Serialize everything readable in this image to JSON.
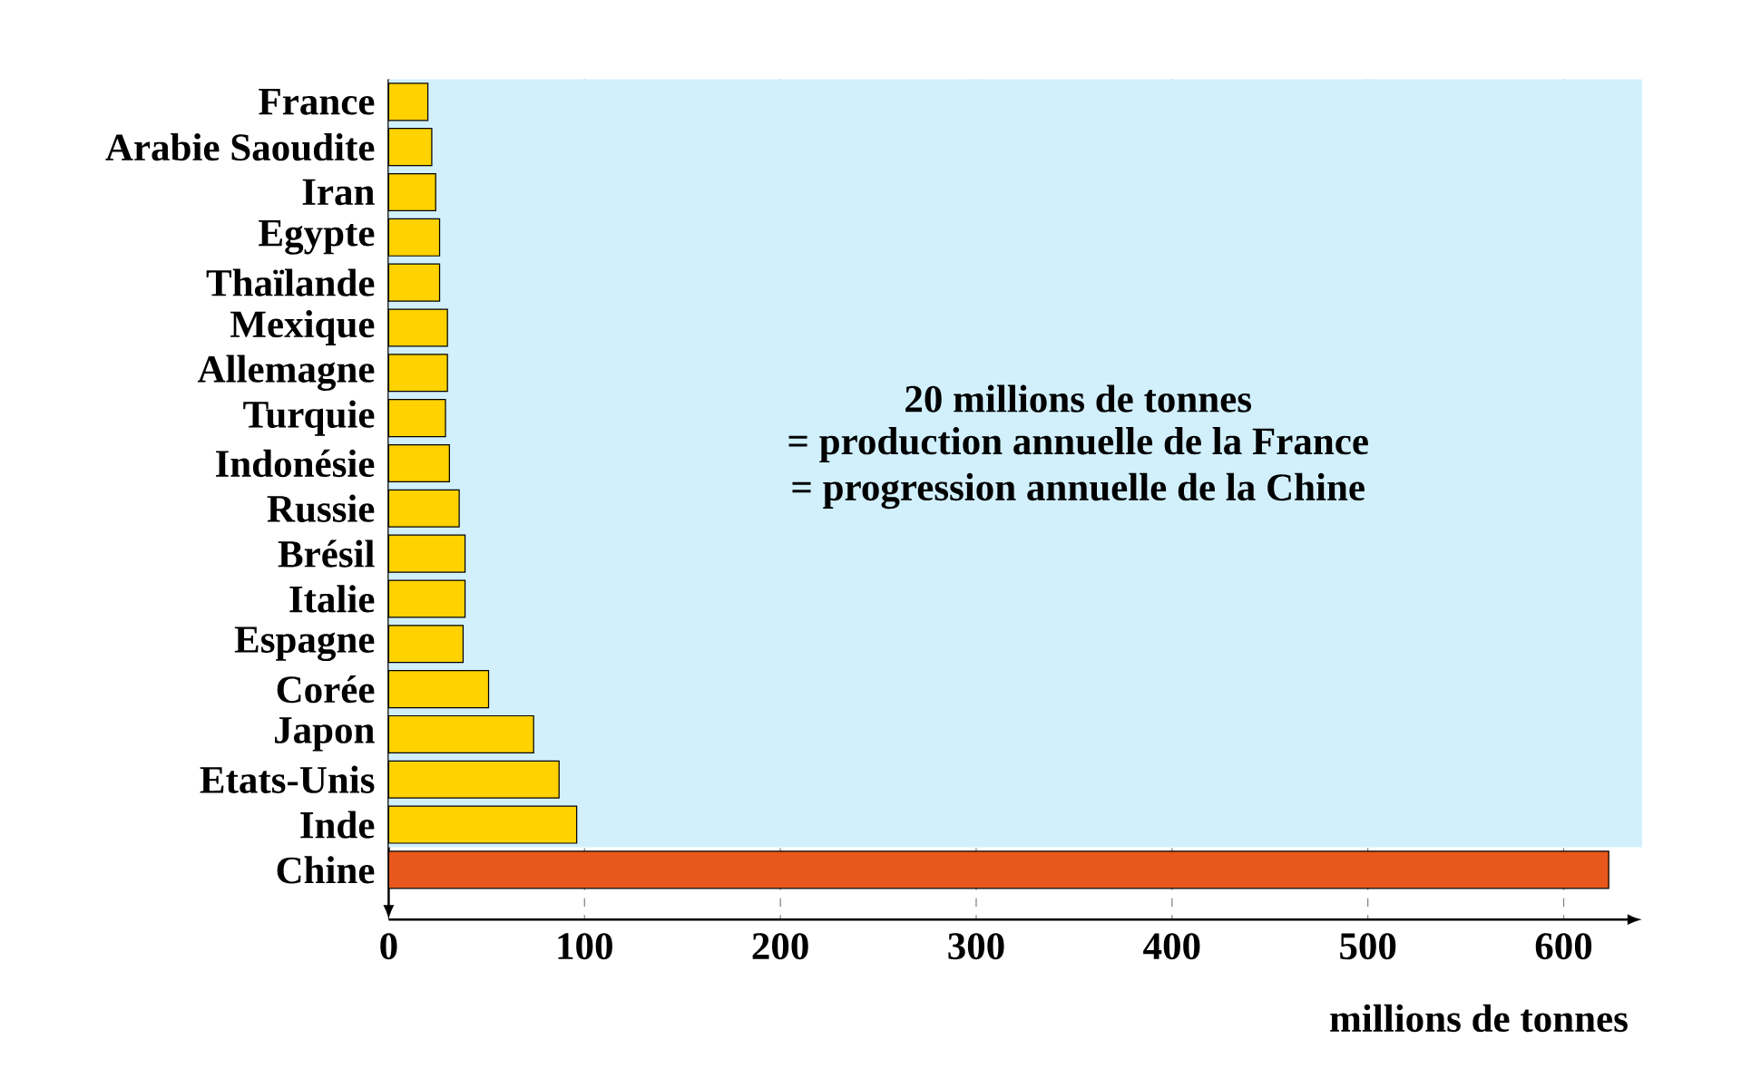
{
  "chart_data": {
    "type": "bar",
    "orientation": "horizontal",
    "categories": [
      "France",
      "Arabie Saoudite",
      "Iran",
      "Egypte",
      "Thaïlande",
      "Mexique",
      "Allemagne",
      "Turquie",
      "Indonésie",
      "Russie",
      "Brésil",
      "Italie",
      "Espagne",
      "Corée",
      "Japon",
      "Etats-Unis",
      "Inde",
      "Chine"
    ],
    "values": [
      20,
      22,
      24,
      26,
      26,
      30,
      30,
      29,
      31,
      36,
      39,
      39,
      38,
      51,
      74,
      87,
      96,
      623
    ],
    "colors": [
      "#ffd200",
      "#ffd200",
      "#ffd200",
      "#ffd200",
      "#ffd200",
      "#ffd200",
      "#ffd200",
      "#ffd200",
      "#ffd200",
      "#ffd200",
      "#ffd200",
      "#ffd200",
      "#ffd200",
      "#ffd200",
      "#ffd200",
      "#ffd200",
      "#ffd200",
      "#e8581c"
    ],
    "xlim": [
      0,
      640
    ],
    "xticks": [
      0,
      100,
      200,
      300,
      400,
      500,
      600
    ],
    "xlabel": "millions de tonnes",
    "grid": "x",
    "annotations": [
      "20 millions de tonnes",
      "= production annuelle de la France",
      "= progression annuelle de la Chine"
    ]
  }
}
